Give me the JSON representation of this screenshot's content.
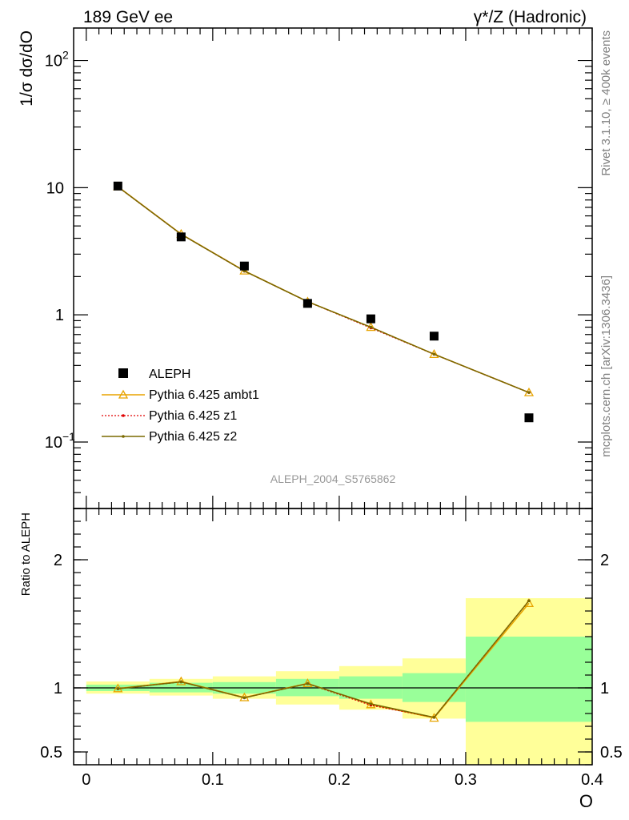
{
  "chart_data": {
    "type": "line",
    "process_left": "189 GeV ee",
    "process_right": "γ*/Z (Hadronic)",
    "ylabel": "1/σ  dσ/dO",
    "ratio_ylabel": "Ratio to ALEPH",
    "xlabel": "O",
    "analysis_label": "ALEPH_2004_S5765862",
    "side_label_top": "Rivet 3.1.10, ≥ 400k events",
    "side_label_bottom": "mcplots.cern.ch [arXiv:1306.3436]",
    "xlim": [
      -0.01,
      0.4
    ],
    "ylim": [
      0.03,
      180
    ],
    "yscale": "log",
    "ratio_ylim": [
      0.4,
      2.4
    ],
    "x_ticks": [
      "0",
      "0.1",
      "0.2",
      "0.3",
      "0.4"
    ],
    "x_tick_values": [
      0,
      0.1,
      0.2,
      0.3,
      0.4
    ],
    "y_ticks": [
      {
        "value": 100,
        "base": "10",
        "exp": "2"
      },
      {
        "value": 10,
        "base": "10",
        "exp": ""
      },
      {
        "value": 1,
        "base": "1",
        "exp": ""
      },
      {
        "value": 0.1,
        "base": "10",
        "exp": "−1"
      }
    ],
    "ratio_y_ticks": [
      "0.5",
      "1",
      "2"
    ],
    "ratio_y_tick_values": [
      0.5,
      1,
      2
    ],
    "data": {
      "name": "ALEPH",
      "x": [
        0.025,
        0.075,
        0.125,
        0.175,
        0.225,
        0.275,
        0.35
      ],
      "y": [
        10.3,
        4.1,
        2.42,
        1.23,
        0.93,
        0.68,
        0.155
      ]
    },
    "bins": [
      {
        "lo": 0.0,
        "hi": 0.05,
        "stat": [
          0.975,
          1.025
        ],
        "total": [
          0.955,
          1.05
        ]
      },
      {
        "lo": 0.05,
        "hi": 0.1,
        "stat": [
          0.965,
          1.04
        ],
        "total": [
          0.94,
          1.07
        ]
      },
      {
        "lo": 0.1,
        "hi": 0.15,
        "stat": [
          0.955,
          1.045
        ],
        "total": [
          0.915,
          1.09
        ]
      },
      {
        "lo": 0.15,
        "hi": 0.2,
        "stat": [
          0.935,
          1.07
        ],
        "total": [
          0.87,
          1.13
        ]
      },
      {
        "lo": 0.2,
        "hi": 0.25,
        "stat": [
          0.915,
          1.09
        ],
        "total": [
          0.83,
          1.17
        ]
      },
      {
        "lo": 0.25,
        "hi": 0.3,
        "stat": [
          0.89,
          1.115
        ],
        "total": [
          0.76,
          1.23
        ]
      },
      {
        "lo": 0.3,
        "hi": 0.4,
        "stat": [
          0.735,
          1.4
        ],
        "total": [
          0.4,
          1.7
        ]
      }
    ],
    "series": [
      {
        "name": "Pythia 6.425 ambt1",
        "color": "#e8a400",
        "style": "solid",
        "marker": "triangle",
        "x": [
          0.025,
          0.075,
          0.125,
          0.175,
          0.225,
          0.275,
          0.35
        ],
        "y": [
          10.2,
          4.32,
          2.22,
          1.27,
          0.8,
          0.49,
          0.245
        ],
        "ratio": [
          0.995,
          1.05,
          0.925,
          1.035,
          0.87,
          0.765,
          1.66
        ]
      },
      {
        "name": "Pythia 6.425 z1",
        "color": "#e00000",
        "style": "dotted",
        "marker": "dot",
        "x": [
          0.025,
          0.075,
          0.125,
          0.175,
          0.225,
          0.275,
          0.35
        ],
        "y": [
          10.15,
          4.3,
          2.21,
          1.27,
          0.79,
          0.49,
          0.245
        ],
        "ratio": [
          0.993,
          1.047,
          0.923,
          1.033,
          0.865,
          0.77,
          1.68
        ]
      },
      {
        "name": "Pythia 6.425 z2",
        "color": "#7a6a00",
        "style": "solid",
        "marker": "dot",
        "x": [
          0.025,
          0.075,
          0.125,
          0.175,
          0.225,
          0.275,
          0.35
        ],
        "y": [
          10.15,
          4.3,
          2.21,
          1.27,
          0.8,
          0.49,
          0.245
        ],
        "ratio": [
          0.993,
          1.047,
          0.923,
          1.033,
          0.875,
          0.77,
          1.68
        ]
      }
    ],
    "band_colors": {
      "stat": "#99ff99",
      "total": "#ffff99"
    },
    "legend_position": "lower-left"
  }
}
